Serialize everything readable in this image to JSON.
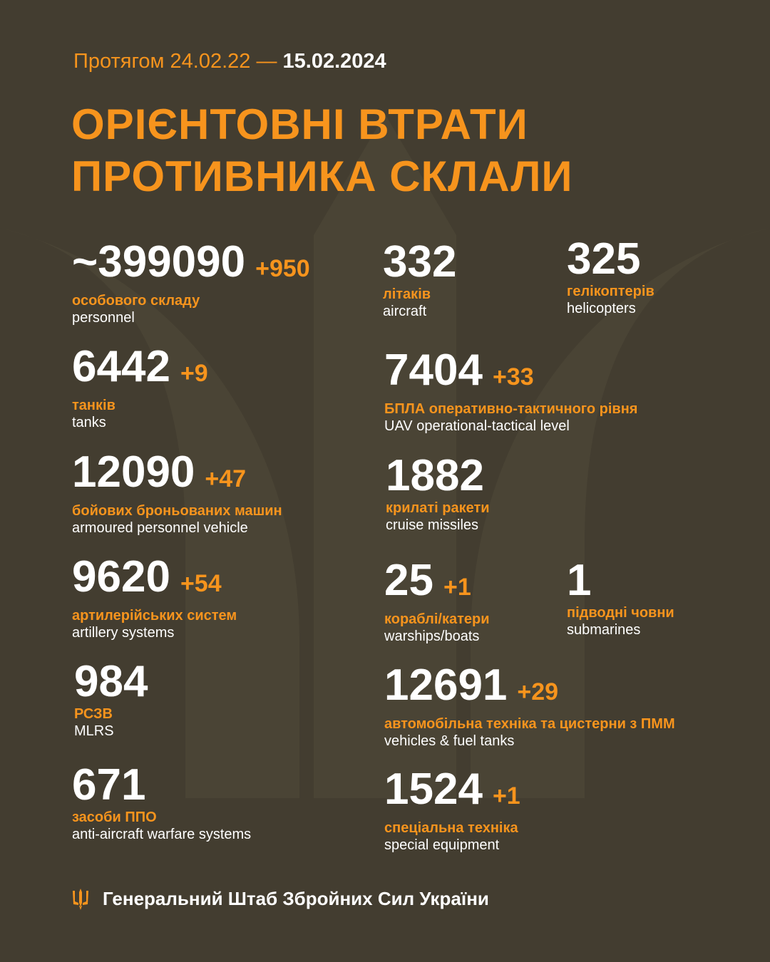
{
  "header": {
    "subtitle_prefix": "Протягом 24.02.22 —",
    "date": "15.02.2024",
    "title_line1": "ОРІЄНТОВНІ ВТРАТИ",
    "title_line2": "ПРОТИВНИКА СКЛАЛИ"
  },
  "stats": [
    {
      "id": "personnel",
      "value": "~399090",
      "delta": "+950",
      "uk": "особового складу",
      "en": "personnel"
    },
    {
      "id": "aircraft",
      "value": "332",
      "delta": "",
      "uk": "літаків",
      "en": "aircraft"
    },
    {
      "id": "helicopters",
      "value": "325",
      "delta": "",
      "uk": "гелікоптерів",
      "en": "helicopters"
    },
    {
      "id": "tanks",
      "value": "6442",
      "delta": "+9",
      "uk": "танків",
      "en": "tanks"
    },
    {
      "id": "uav",
      "value": "7404",
      "delta": "+33",
      "uk": "БПЛА оперативно-тактичного рівня",
      "en": "UAV operational-tactical level"
    },
    {
      "id": "apv",
      "value": "12090",
      "delta": "+47",
      "uk": "бойових броньованих машин",
      "en": "armoured personnel vehicle"
    },
    {
      "id": "cruise",
      "value": "1882",
      "delta": "",
      "uk": "крилаті ракети",
      "en": "cruise missiles"
    },
    {
      "id": "artillery",
      "value": "9620",
      "delta": "+54",
      "uk": "артилерійських систем",
      "en": "artillery systems"
    },
    {
      "id": "warships",
      "value": "25",
      "delta": "+1",
      "uk": "кораблі/катери",
      "en": "warships/boats"
    },
    {
      "id": "submarines",
      "value": "1",
      "delta": "",
      "uk": "підводні човни",
      "en": "submarines"
    },
    {
      "id": "mlrs",
      "value": "984",
      "delta": "",
      "uk": "РСЗВ",
      "en": "MLRS"
    },
    {
      "id": "vehicles",
      "value": "12691",
      "delta": "+29",
      "uk": "автомобільна техніка та цистерни з ПММ",
      "en": "vehicles & fuel tanks"
    },
    {
      "id": "antiaircraft",
      "value": "671",
      "delta": "",
      "uk": "засоби ППО",
      "en": "anti-aircraft warfare systems"
    },
    {
      "id": "special",
      "value": "1524",
      "delta": "+1",
      "uk": "спеціальна техніка",
      "en": "special equipment"
    }
  ],
  "footer": {
    "icon": "trident-icon",
    "text": "Генеральний Штаб Збройних Сил України"
  },
  "colors": {
    "background": "#433d30",
    "accent": "#f7941d",
    "text": "#ffffff"
  }
}
